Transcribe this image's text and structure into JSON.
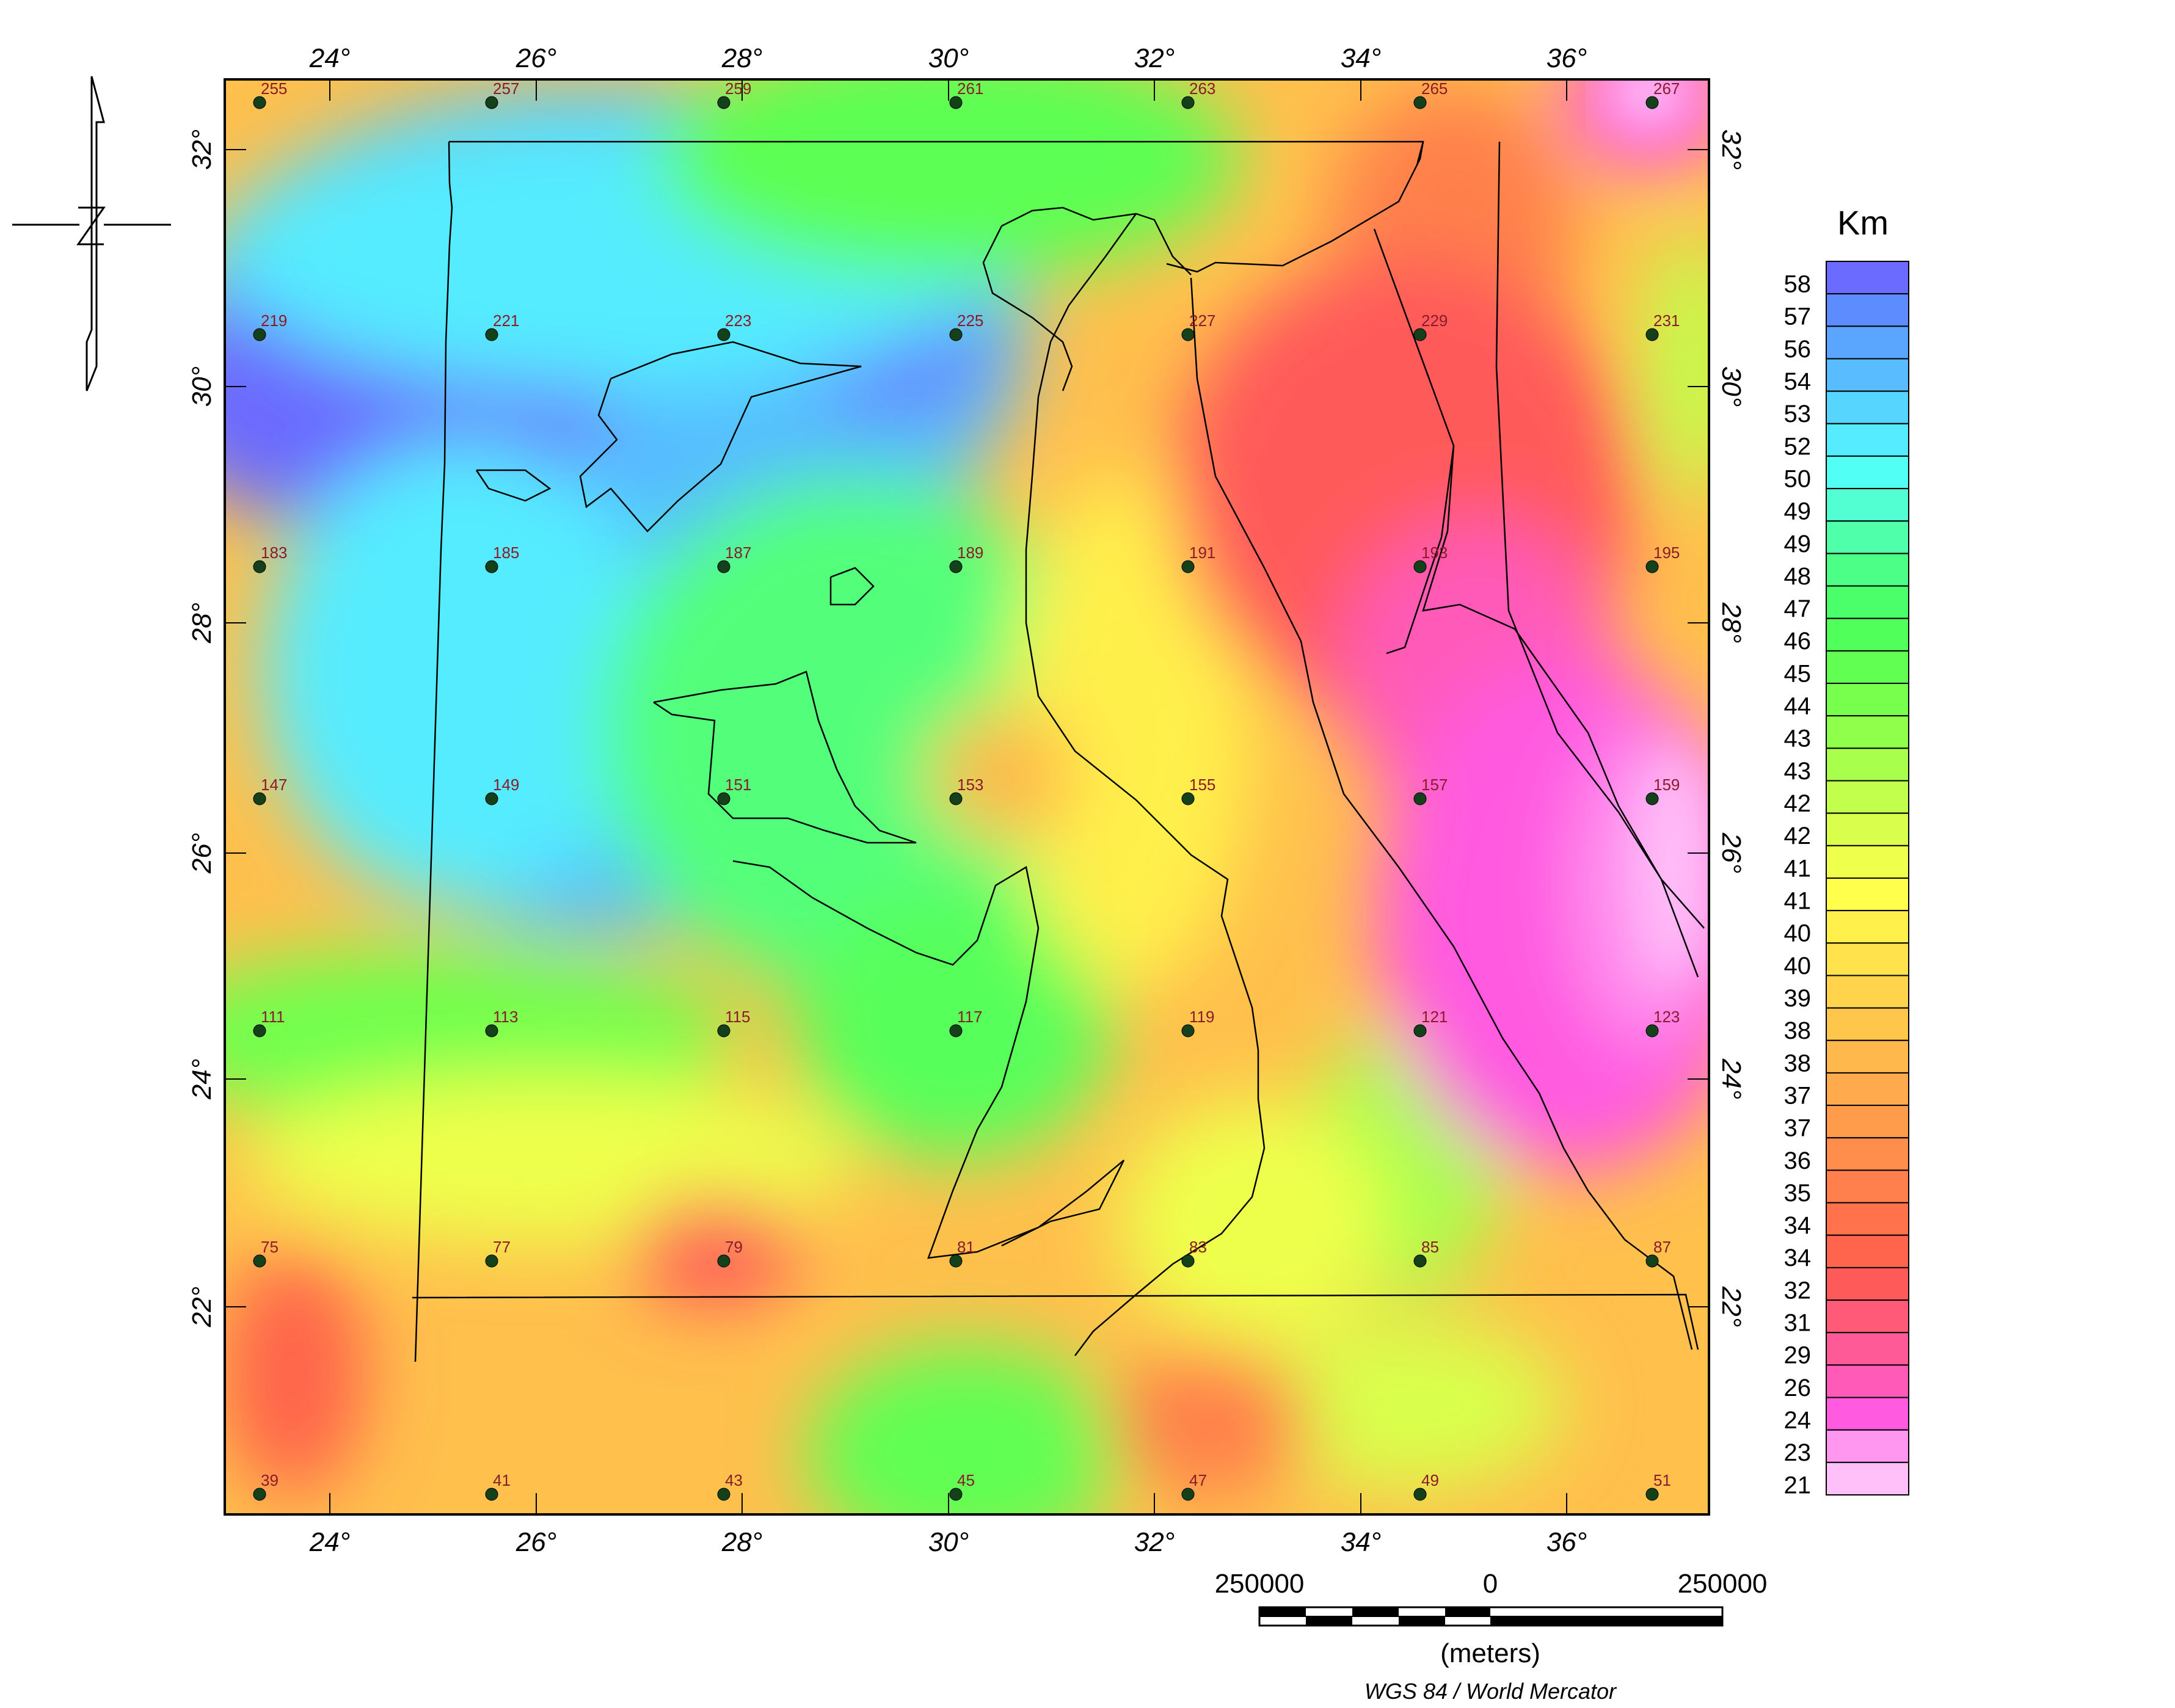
{
  "map": {
    "lon_ticks": [
      "24°",
      "26°",
      "28°",
      "30°",
      "32°",
      "34°",
      "36°"
    ],
    "lat_ticks": [
      "32°",
      "30°",
      "28°",
      "26°",
      "24°",
      "22°"
    ],
    "stations": [
      {
        "id": "255"
      },
      {
        "id": "257"
      },
      {
        "id": "259"
      },
      {
        "id": "261"
      },
      {
        "id": "263"
      },
      {
        "id": "265"
      },
      {
        "id": "267"
      },
      {
        "id": "219"
      },
      {
        "id": "221"
      },
      {
        "id": "223"
      },
      {
        "id": "225"
      },
      {
        "id": "227"
      },
      {
        "id": "229"
      },
      {
        "id": "231"
      },
      {
        "id": "183"
      },
      {
        "id": "185"
      },
      {
        "id": "187"
      },
      {
        "id": "189"
      },
      {
        "id": "191"
      },
      {
        "id": "193"
      },
      {
        "id": "195"
      },
      {
        "id": "147"
      },
      {
        "id": "149"
      },
      {
        "id": "151"
      },
      {
        "id": "153"
      },
      {
        "id": "155"
      },
      {
        "id": "157"
      },
      {
        "id": "159"
      },
      {
        "id": "111"
      },
      {
        "id": "113"
      },
      {
        "id": "115"
      },
      {
        "id": "117"
      },
      {
        "id": "119"
      },
      {
        "id": "121"
      },
      {
        "id": "123"
      },
      {
        "id": "75"
      },
      {
        "id": "77"
      },
      {
        "id": "79"
      },
      {
        "id": "81"
      },
      {
        "id": "83"
      },
      {
        "id": "85"
      },
      {
        "id": "87"
      },
      {
        "id": "39"
      },
      {
        "id": "41"
      },
      {
        "id": "43"
      },
      {
        "id": "45"
      },
      {
        "id": "47"
      },
      {
        "id": "49"
      },
      {
        "id": "51"
      }
    ]
  },
  "legend": {
    "title": "Km",
    "labels": [
      "58",
      "57",
      "56",
      "54",
      "53",
      "52",
      "50",
      "49",
      "49",
      "48",
      "47",
      "46",
      "45",
      "44",
      "43",
      "43",
      "42",
      "42",
      "41",
      "41",
      "40",
      "40",
      "39",
      "38",
      "38",
      "37",
      "37",
      "36",
      "35",
      "34",
      "34",
      "32",
      "31",
      "29",
      "26",
      "24",
      "23",
      "21"
    ],
    "colors": [
      "#6b6bff",
      "#5c8cff",
      "#5aa6ff",
      "#58bcff",
      "#56d6ff",
      "#55ecff",
      "#52fff4",
      "#52ffd2",
      "#4fffaa",
      "#4cff86",
      "#4aff6a",
      "#50ff5a",
      "#60ff52",
      "#78ff4e",
      "#90ff4c",
      "#a8ff4c",
      "#c2ff4c",
      "#d9ff4c",
      "#eeff4c",
      "#ffff4c",
      "#fff04c",
      "#ffe24c",
      "#ffd44c",
      "#ffc64c",
      "#ffb84c",
      "#ffaa4c",
      "#ff9c4c",
      "#ff8e4c",
      "#ff804c",
      "#ff724c",
      "#ff644c",
      "#ff5a5a",
      "#ff5a78",
      "#ff5a98",
      "#ff5ab8",
      "#ff5ae0",
      "#ff96f0",
      "#ffbff8"
    ]
  },
  "scale_bar": {
    "left_label": "250000",
    "center_label": "0",
    "right_label": "250000",
    "units": "(meters)"
  },
  "projection": "WGS 84 / World Mercator"
}
